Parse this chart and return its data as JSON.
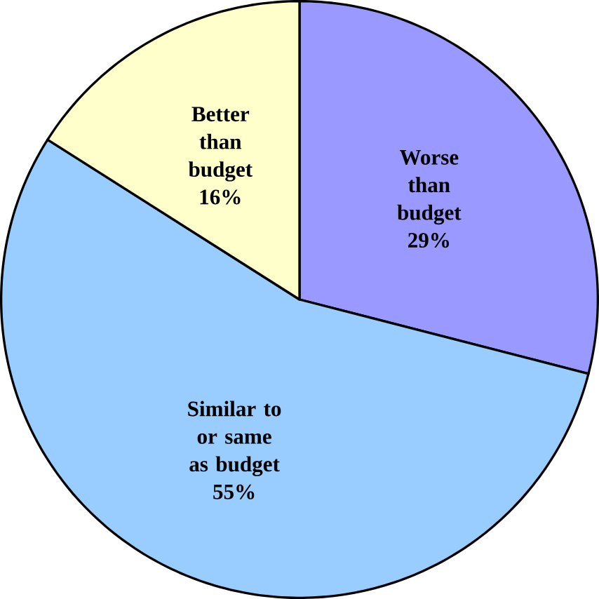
{
  "chart_data": {
    "type": "pie",
    "categories": [
      "Worse than budget",
      "Similar to or same as budget",
      "Better than budget"
    ],
    "values": [
      29,
      55,
      16
    ],
    "colors": [
      "#9999ff",
      "#99ccff",
      "#ffffcc"
    ],
    "value_labels": [
      "29%",
      "55%",
      "16%"
    ]
  }
}
